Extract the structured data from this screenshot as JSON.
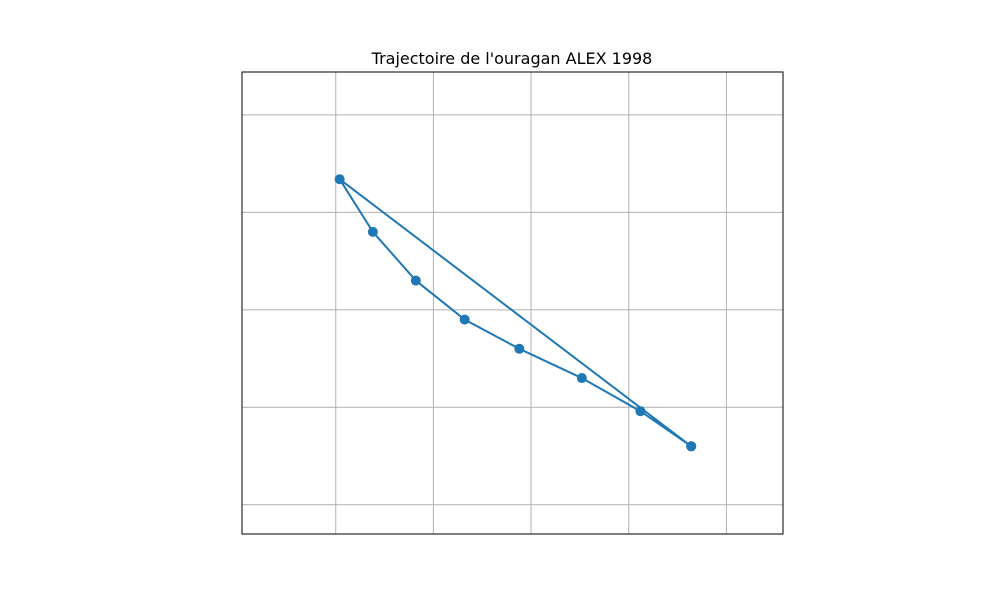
{
  "chart_data": {
    "type": "line",
    "title": "Trajectoire de l'ouragan ALEX 1998",
    "xlabel": "",
    "ylabel": "",
    "grid": true,
    "xlim": [
      -61.0,
      -33.3
    ],
    "ylim": [
      10.5,
      34.2
    ],
    "x_gridlines": [
      -56.2,
      -51.2,
      -46.2,
      -41.2,
      -36.2
    ],
    "y_gridlines": [
      12,
      17,
      22,
      27,
      32
    ],
    "series": [
      {
        "color": "#1f77b4",
        "marker": "circle",
        "x": [
          -38.0,
          -40.6,
          -43.6,
          -46.8,
          -49.6,
          -52.1,
          -54.3,
          -56.0,
          -38.0
        ],
        "y": [
          15.0,
          16.8,
          18.5,
          20.0,
          21.5,
          23.5,
          26.0,
          28.7,
          15.0
        ]
      }
    ]
  }
}
